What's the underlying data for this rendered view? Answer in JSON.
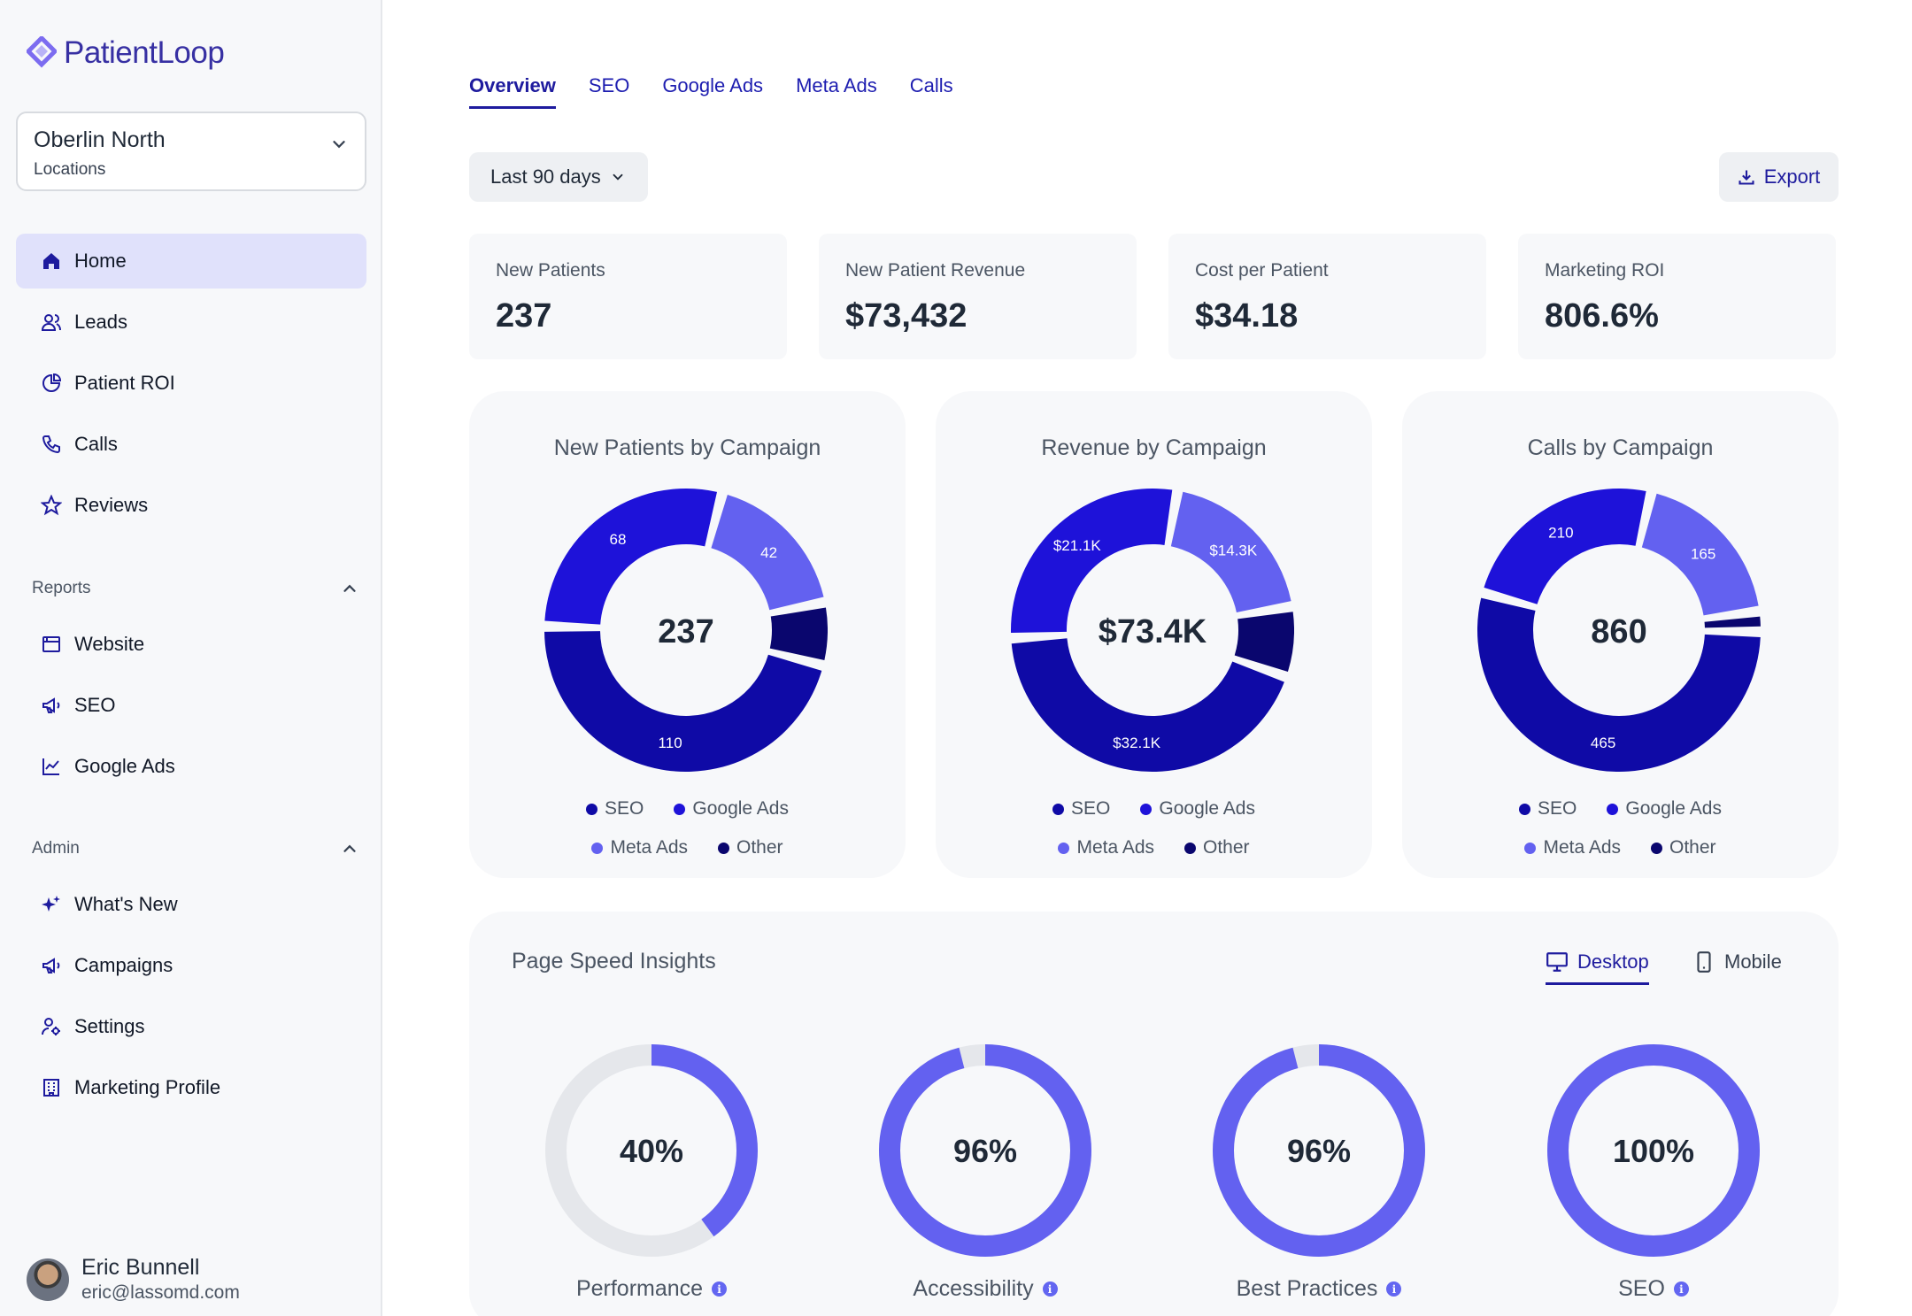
{
  "brand": {
    "name": "PatientLoop"
  },
  "location": {
    "name": "Oberlin North",
    "sub": "Locations"
  },
  "nav": {
    "home": "Home",
    "leads": "Leads",
    "patient_roi": "Patient ROI",
    "calls": "Calls",
    "reviews": "Reviews",
    "reports_header": "Reports",
    "website": "Website",
    "seo": "SEO",
    "google_ads": "Google Ads",
    "admin_header": "Admin",
    "whats_new": "What's New",
    "campaigns": "Campaigns",
    "settings": "Settings",
    "marketing_profile": "Marketing Profile"
  },
  "user": {
    "name": "Eric Bunnell",
    "email": "eric@lassomd.com"
  },
  "tabs": [
    "Overview",
    "SEO",
    "Google Ads",
    "Meta Ads",
    "Calls"
  ],
  "toolbar": {
    "range": "Last 90 days",
    "export": "Export"
  },
  "kpis": [
    {
      "label": "New Patients",
      "value": "237"
    },
    {
      "label": "New Patient Revenue",
      "value": "$73,432"
    },
    {
      "label": "Cost per Patient",
      "value": "$34.18"
    },
    {
      "label": "Marketing ROI",
      "value": "806.6%"
    }
  ],
  "colors": {
    "seo": "#0f0aa6",
    "google_ads": "#1e12d9",
    "meta_ads": "#6361f0",
    "other": "#0a066e",
    "accent": "#1e1b9e"
  },
  "legend": [
    "SEO",
    "Google Ads",
    "Meta Ads",
    "Other"
  ],
  "chart_data": [
    {
      "type": "pie",
      "title": "New Patients by Campaign",
      "center": "237",
      "categories": [
        "SEO",
        "Google Ads",
        "Meta Ads",
        "Other"
      ],
      "values": [
        110,
        68,
        42,
        17
      ],
      "labels": [
        "110",
        "68",
        "42",
        ""
      ]
    },
    {
      "type": "pie",
      "title": "Revenue by Campaign",
      "center": "$73.4K",
      "categories": [
        "SEO",
        "Google Ads",
        "Meta Ads",
        "Other"
      ],
      "values": [
        32.1,
        21.1,
        14.3,
        5.9
      ],
      "labels": [
        "$32.1K",
        "$21.1K",
        "$14.3K",
        ""
      ]
    },
    {
      "type": "pie",
      "title": "Calls by Campaign",
      "center": "860",
      "categories": [
        "SEO",
        "Google Ads",
        "Meta Ads",
        "Other"
      ],
      "values": [
        465,
        210,
        165,
        20
      ],
      "labels": [
        "465",
        "210",
        "165",
        ""
      ]
    }
  ],
  "psi": {
    "title": "Page Speed Insights",
    "desktop": "Desktop",
    "mobile": "Mobile",
    "scores": [
      {
        "label": "Performance",
        "value": 40,
        "display": "40%"
      },
      {
        "label": "Accessibility",
        "value": 96,
        "display": "96%"
      },
      {
        "label": "Best Practices",
        "value": 96,
        "display": "96%"
      },
      {
        "label": "SEO",
        "value": 100,
        "display": "100%"
      }
    ],
    "ring_color": "#6361f0",
    "track_color": "#e5e7eb"
  }
}
